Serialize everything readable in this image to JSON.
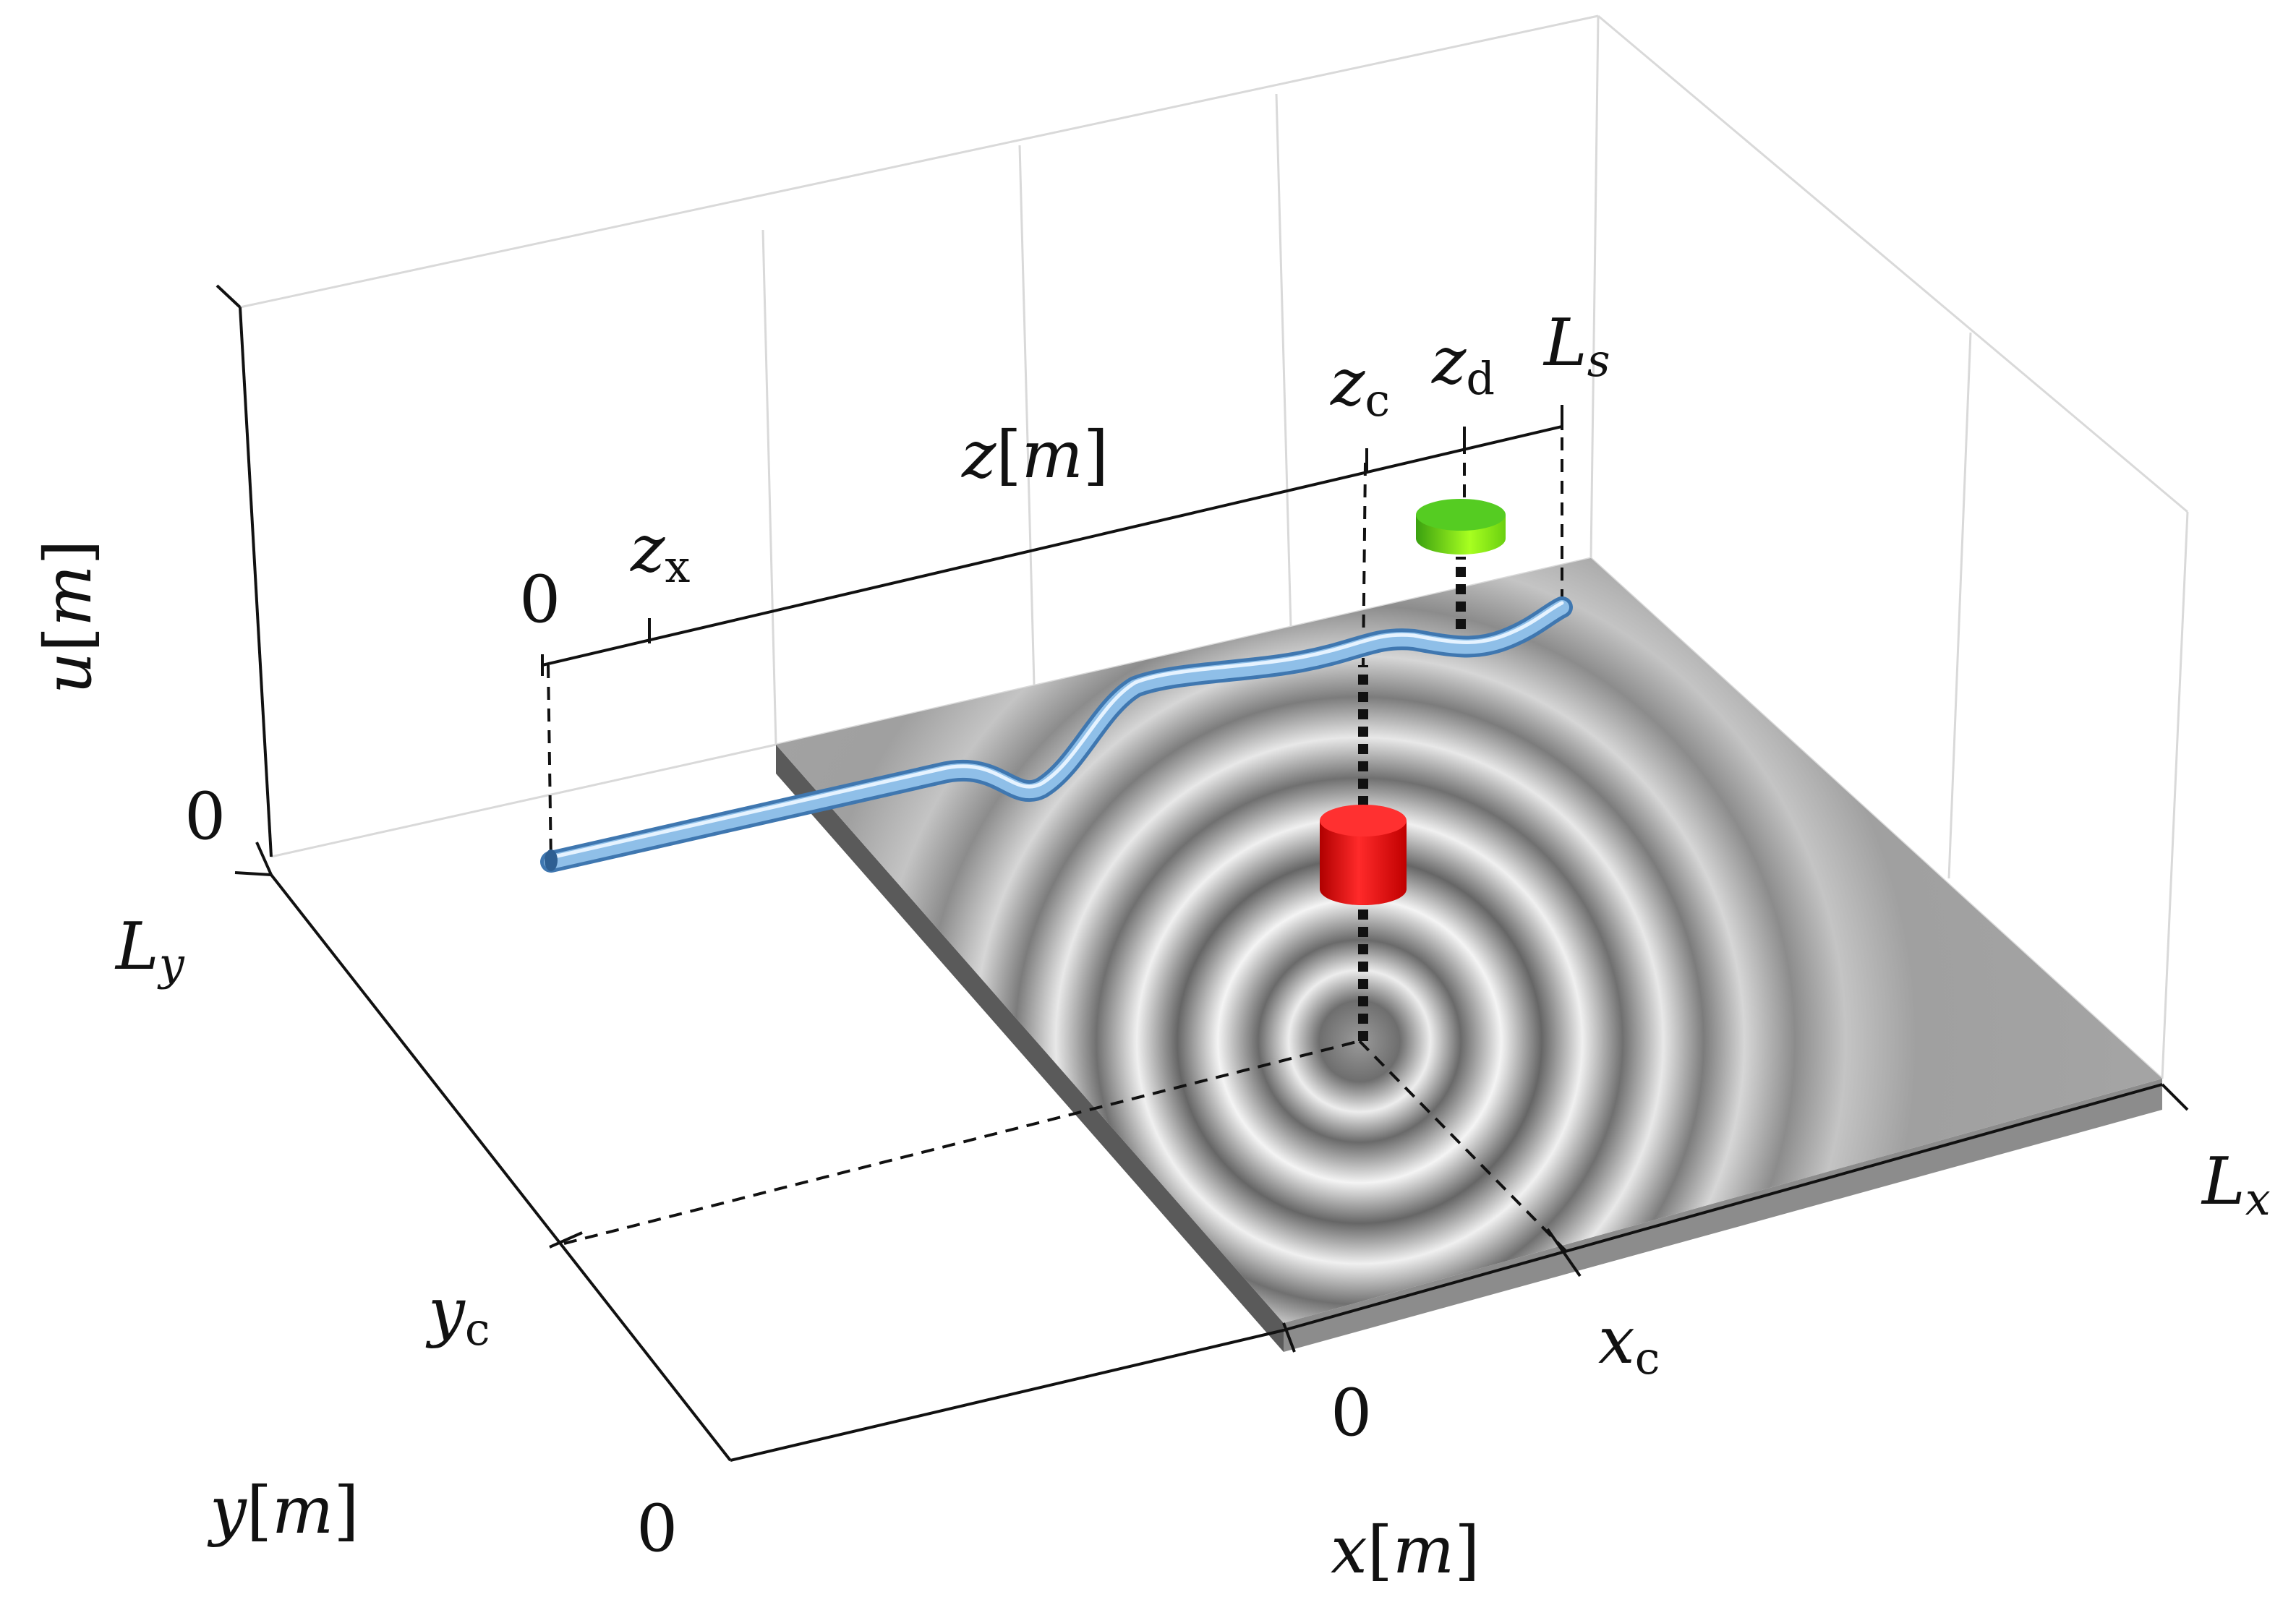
{
  "axes": {
    "u": {
      "var": "u",
      "unit": "m",
      "zero": "0"
    },
    "x": {
      "var": "x",
      "unit": "m",
      "zero": "0",
      "end": "L",
      "end_sub": "x"
    },
    "y": {
      "var": "y",
      "unit": "m",
      "zero": "0",
      "end": "L",
      "end_sub": "y"
    },
    "z": {
      "var": "z",
      "unit": "m",
      "zero": "0",
      "end": "L",
      "end_sub": "s"
    }
  },
  "markers": {
    "z_x": {
      "base": "z",
      "sub": "x"
    },
    "z_c": {
      "base": "z",
      "sub": "c"
    },
    "z_d": {
      "base": "z",
      "sub": "d"
    },
    "x_c": {
      "base": "x",
      "sub": "c"
    },
    "y_c": {
      "base": "y",
      "sub": "c"
    }
  },
  "colors": {
    "plate_top": "#a6a6a6",
    "plate_side": "#5a5a5a",
    "cable": "#8fbfe8",
    "actuator": "#e81010",
    "sensor": "#66dd22",
    "grid": "#d9d9d9"
  }
}
